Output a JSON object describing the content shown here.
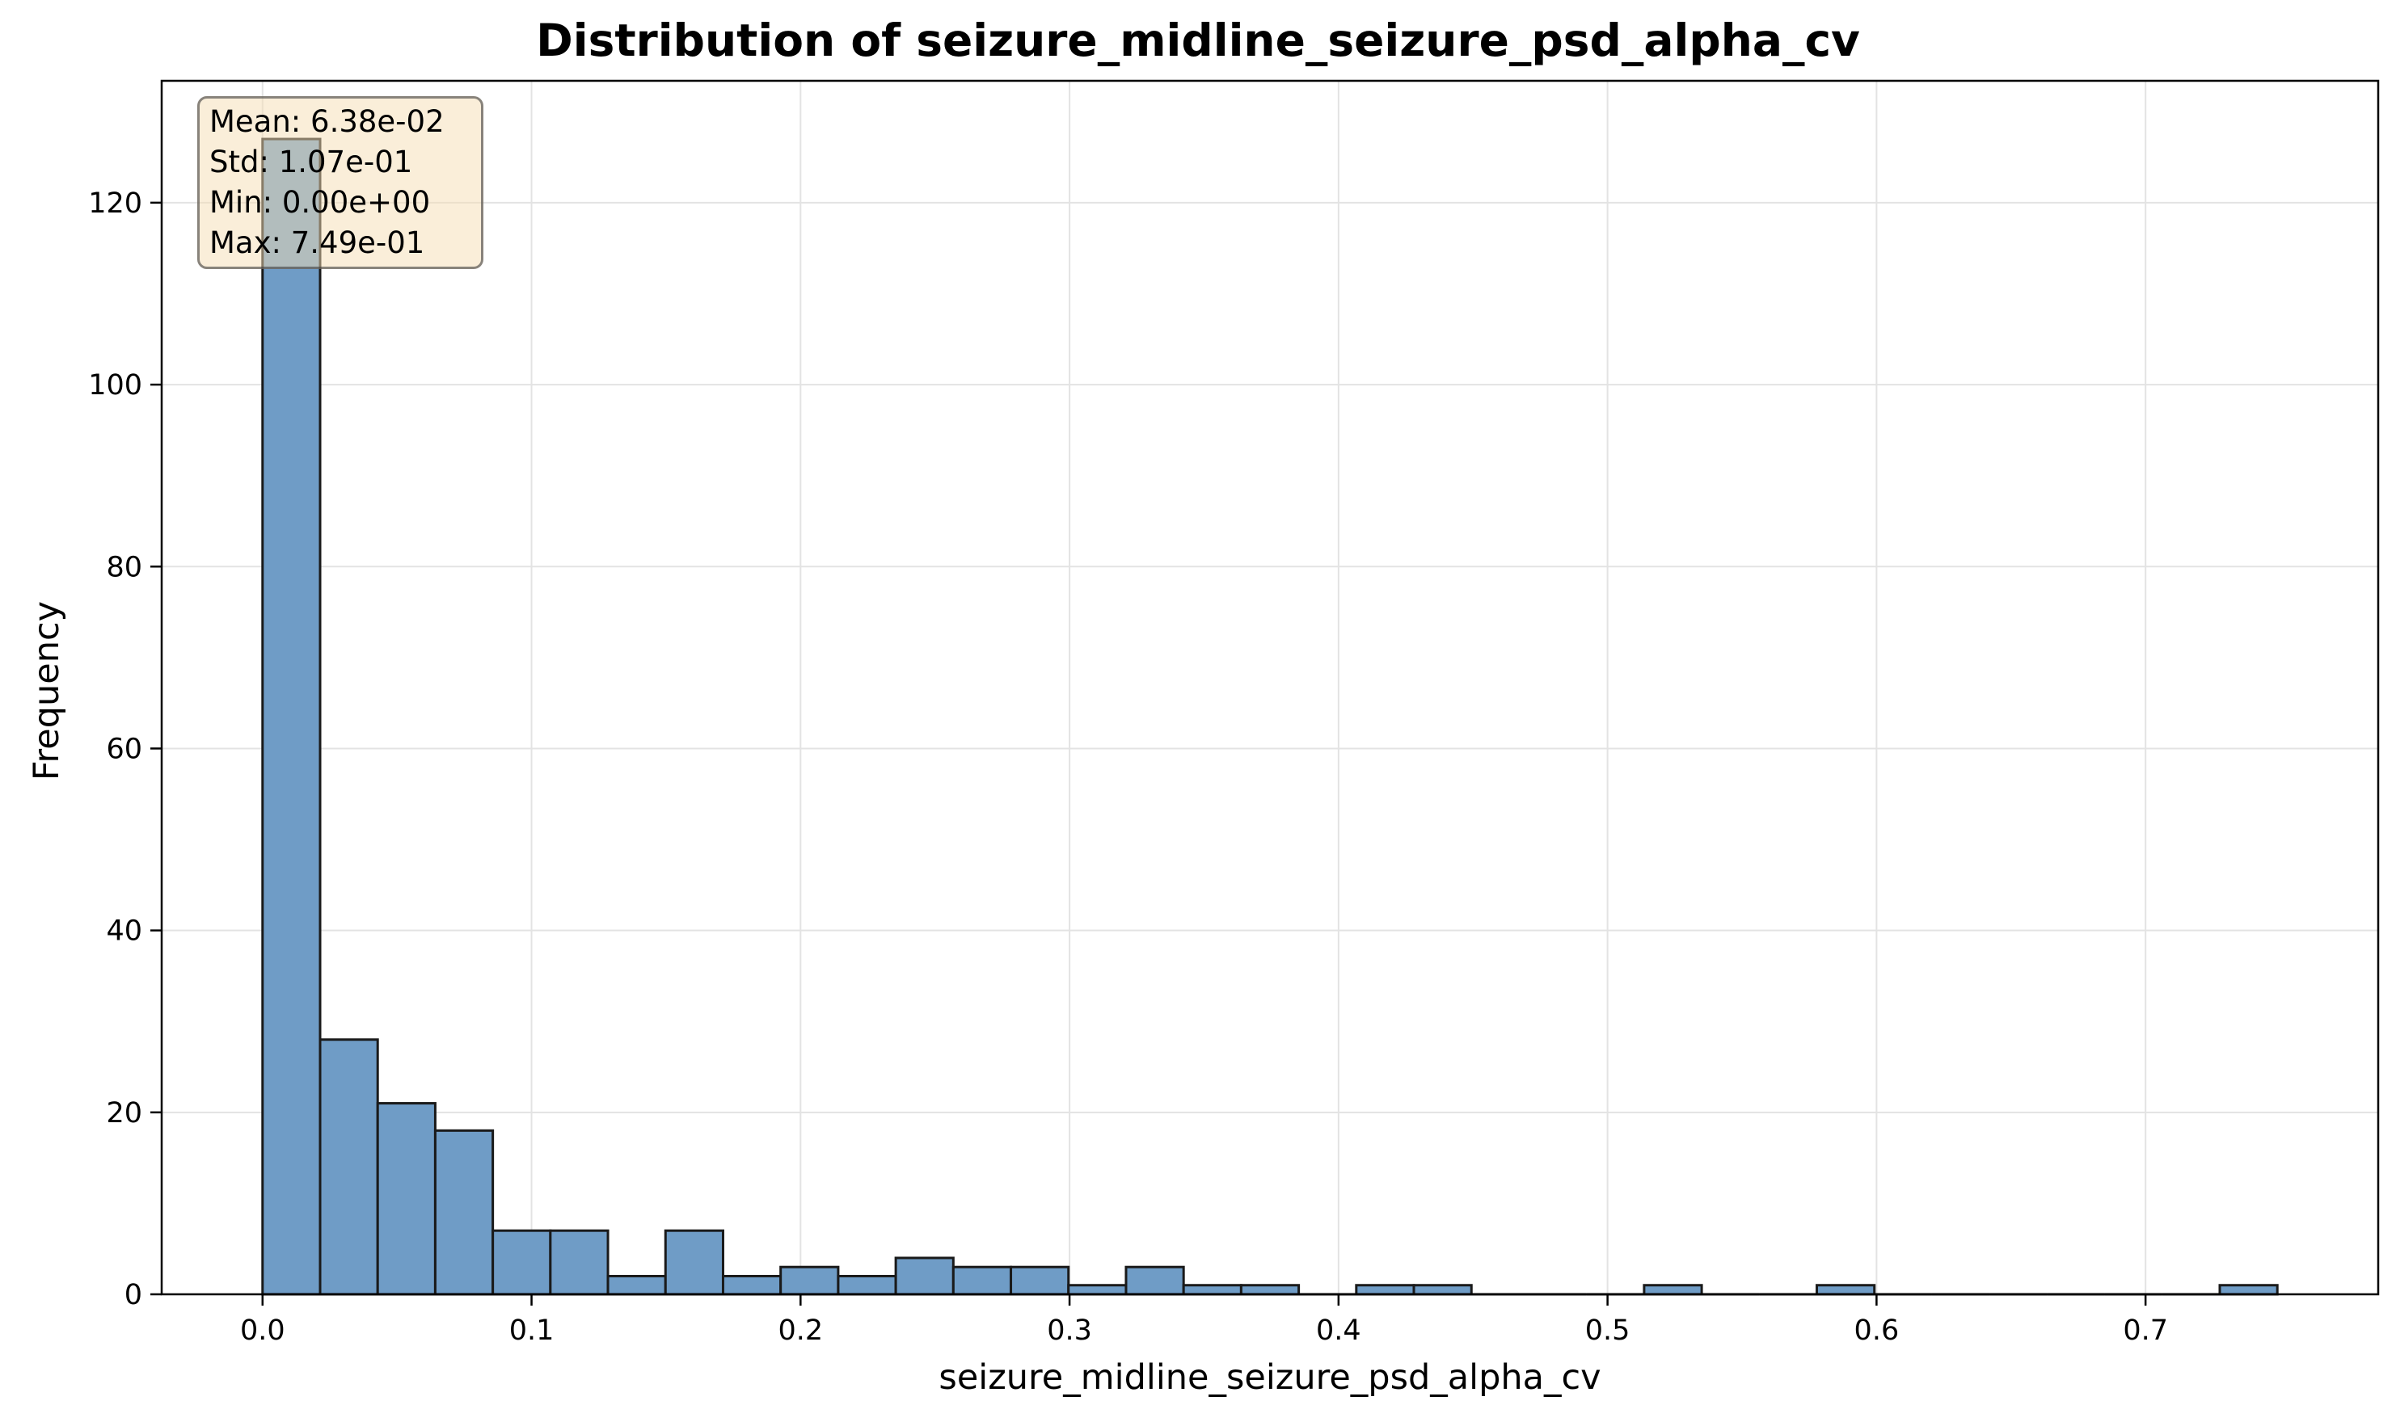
{
  "chart_data": {
    "type": "bar",
    "title": "Distribution of seizure_midline_seizure_psd_alpha_cv",
    "xlabel": "seizure_midline_seizure_psd_alpha_cv",
    "ylabel": "Frequency",
    "xlim": [
      -0.0375,
      0.7865
    ],
    "ylim": [
      0,
      133.4
    ],
    "xticks": [
      0.0,
      0.1,
      0.2,
      0.3,
      0.4,
      0.5,
      0.6,
      0.7
    ],
    "xtick_labels": [
      "0.0",
      "0.1",
      "0.2",
      "0.3",
      "0.4",
      "0.5",
      "0.6",
      "0.7"
    ],
    "yticks": [
      0,
      20,
      40,
      60,
      80,
      100,
      120
    ],
    "ytick_labels": [
      "0",
      "20",
      "40",
      "60",
      "80",
      "100",
      "120"
    ],
    "grid": true,
    "bin_start": 0.0,
    "bin_end": 0.749,
    "bin_count": 35,
    "values": [
      127,
      28,
      21,
      18,
      7,
      7,
      2,
      7,
      2,
      3,
      2,
      4,
      3,
      3,
      1,
      3,
      1,
      1,
      0,
      1,
      1,
      0,
      0,
      0,
      1,
      0,
      0,
      1,
      0,
      0,
      0,
      0,
      0,
      0,
      1
    ],
    "bar_color": "#6f9cc6",
    "edge_color": "#1a1a1a",
    "stats": {
      "mean": "Mean: 6.38e-02",
      "std": "Std: 1.07e-01",
      "min": "Min: 0.00e+00",
      "max": "Max: 7.49e-01"
    }
  }
}
